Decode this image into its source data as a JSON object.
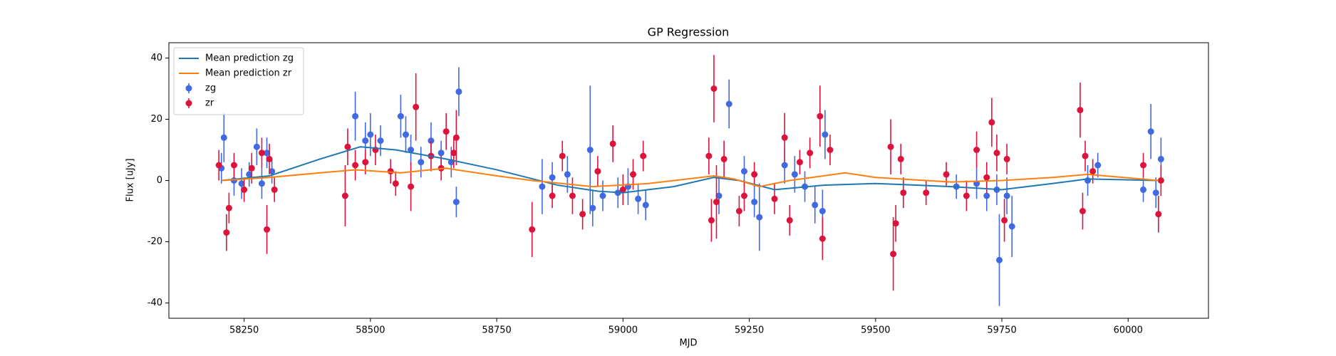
{
  "chart_data": {
    "type": "line",
    "title": "GP Regression",
    "x_label": "MJD",
    "y_label": "Flux [uJy]",
    "xlim": [
      58101,
      60159
    ],
    "ylim": [
      -45,
      45
    ],
    "xticks": [
      58250,
      58500,
      58750,
      59000,
      59250,
      59500,
      59750,
      60000
    ],
    "yticks": [
      -40,
      -20,
      0,
      20,
      40
    ],
    "grid": false,
    "legend": "upper left",
    "series": [
      {
        "name": "Mean prediction zg",
        "style": "line",
        "color": "#1f77b4",
        "x": [
          58205,
          58300,
          58400,
          58480,
          58550,
          58650,
          58750,
          58870,
          58950,
          59000,
          59100,
          59180,
          59230,
          59300,
          59400,
          59500,
          59580,
          59650,
          59750,
          59850,
          59920,
          60060
        ],
        "values": [
          0,
          1.5,
          7,
          11,
          10,
          7,
          3.5,
          -1.5,
          -3.5,
          -4,
          -2,
          1,
          0,
          -3,
          -1.5,
          -1,
          -1.5,
          -2,
          -3,
          -1,
          0.5,
          0
        ]
      },
      {
        "name": "Mean prediction zr",
        "style": "line",
        "color": "#ff7f0e",
        "x": [
          58205,
          58300,
          58400,
          58470,
          58560,
          58650,
          58750,
          58820,
          58940,
          59050,
          59180,
          59220,
          59270,
          59330,
          59440,
          59500,
          59600,
          59650,
          59750,
          59850,
          59920,
          60060
        ],
        "values": [
          0,
          1,
          2.5,
          3.5,
          2.5,
          4,
          1.5,
          0,
          -2,
          -1,
          1.5,
          0.5,
          -2,
          0,
          2.5,
          1,
          0,
          -0.5,
          0,
          1,
          2,
          0
        ]
      },
      {
        "name": "zg",
        "style": "errorbar",
        "color": "#4169e1",
        "x": [
          58205,
          58210,
          58230,
          58245,
          58260,
          58275,
          58285,
          58295,
          58305,
          58470,
          58490,
          58500,
          58520,
          58560,
          58570,
          58580,
          58600,
          58620,
          58640,
          58660,
          58670,
          58675,
          58840,
          58860,
          58890,
          58935,
          58940,
          58960,
          58990,
          59010,
          59030,
          59045,
          59190,
          59210,
          59240,
          59260,
          59270,
          59320,
          59340,
          59360,
          59380,
          59395,
          59400,
          59660,
          59700,
          59720,
          59740,
          59745,
          59760,
          59770,
          59920,
          59940,
          60030,
          60045,
          60055,
          60065
        ],
        "values": [
          4,
          14,
          0,
          -1,
          2,
          11,
          -1,
          9,
          3,
          21,
          13,
          15,
          13,
          21,
          15,
          10,
          6,
          13,
          9,
          6,
          -7,
          29,
          -2,
          1,
          2,
          10,
          -9,
          -5,
          -4,
          -2,
          -6,
          -8,
          -5,
          25,
          3,
          -7,
          -12,
          5,
          2,
          -2,
          -8,
          -10,
          15,
          -2,
          -1,
          -5,
          -3,
          -26,
          -5,
          -15,
          0,
          5,
          -3,
          16,
          -4,
          7
        ],
        "errors": [
          5,
          8,
          5,
          5,
          4,
          6,
          5,
          5,
          4,
          8,
          6,
          7,
          5,
          7,
          6,
          5,
          5,
          6,
          4,
          5,
          5,
          8,
          9,
          5,
          6,
          21,
          6,
          5,
          5,
          6,
          5,
          5,
          6,
          8,
          5,
          5,
          11,
          6,
          6,
          5,
          6,
          7,
          8,
          4,
          5,
          5,
          5,
          15,
          6,
          10,
          5,
          4,
          4,
          9,
          5,
          7
        ]
      },
      {
        "name": "zr",
        "style": "errorbar",
        "color": "#dc143c",
        "x": [
          58200,
          58215,
          58220,
          58230,
          58250,
          58265,
          58285,
          58295,
          58300,
          58310,
          58450,
          58455,
          58470,
          58490,
          58510,
          58540,
          58550,
          58580,
          58590,
          58620,
          58640,
          58650,
          58665,
          58670,
          58820,
          58860,
          58880,
          58900,
          58920,
          58950,
          58980,
          59000,
          59020,
          59040,
          59170,
          59175,
          59180,
          59185,
          59200,
          59230,
          59240,
          59260,
          59300,
          59320,
          59330,
          59350,
          59370,
          59390,
          59395,
          59410,
          59530,
          59535,
          59540,
          59550,
          59555,
          59600,
          59640,
          59680,
          59700,
          59720,
          59730,
          59740,
          59755,
          59760,
          59905,
          59910,
          59915,
          59930,
          60030,
          60060,
          60065
        ],
        "values": [
          5,
          -17,
          -9,
          5,
          -3,
          4,
          9,
          -16,
          7,
          -3,
          -5,
          11,
          5,
          6,
          10,
          3,
          -1,
          -2,
          24,
          8,
          4,
          16,
          9,
          14,
          -16,
          -5,
          8,
          -5,
          -11,
          3,
          12,
          -3,
          2,
          8,
          8,
          -13,
          30,
          -7,
          7,
          -10,
          -5,
          2,
          -6,
          14,
          -13,
          6,
          9,
          21,
          -19,
          10,
          11,
          -24,
          -14,
          7,
          -4,
          -4,
          2,
          -5,
          10,
          1,
          19,
          9,
          -13,
          7,
          23,
          -10,
          8,
          3,
          5,
          -11,
          0
        ],
        "errors": [
          5,
          6,
          5,
          4,
          4,
          5,
          5,
          8,
          5,
          4,
          10,
          6,
          5,
          4,
          5,
          4,
          4,
          8,
          11,
          5,
          4,
          6,
          5,
          9,
          9,
          4,
          5,
          6,
          5,
          5,
          6,
          5,
          5,
          5,
          6,
          7,
          11,
          12,
          6,
          5,
          5,
          4,
          5,
          8,
          5,
          4,
          5,
          10,
          7,
          5,
          9,
          12,
          6,
          5,
          5,
          4,
          4,
          5,
          6,
          5,
          8,
          6,
          7,
          5,
          9,
          6,
          5,
          4,
          4,
          6,
          5
        ]
      }
    ]
  }
}
